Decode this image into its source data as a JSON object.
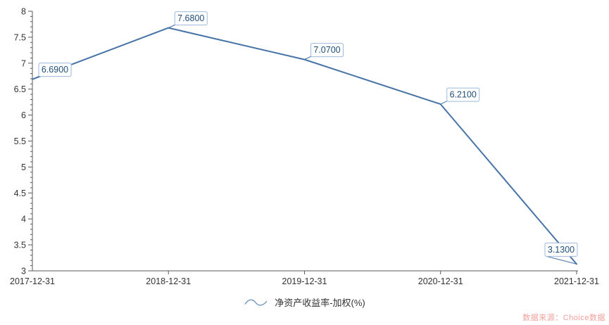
{
  "chart_data": {
    "type": "line",
    "title": "",
    "x": [
      "2017-12-31",
      "2018-12-31",
      "2019-12-31",
      "2020-12-31",
      "2021-12-31"
    ],
    "series": [
      {
        "name": "净资产收益率-加权(%)",
        "values": [
          6.69,
          7.68,
          7.07,
          6.21,
          3.13
        ],
        "point_labels": [
          "6.6900",
          "7.6800",
          "7.0700",
          "6.2100",
          "3.1300"
        ],
        "color": "#4572a7"
      }
    ],
    "xlabel": "",
    "ylabel": "",
    "ylim": [
      3,
      8
    ],
    "y_major_step": 0.5,
    "y_minor_step": 0.1,
    "grid": false,
    "legend_position": "bottom"
  },
  "legend": {
    "label": "净资产收益率-加权(%)"
  },
  "watermark": {
    "text": "数据来源：Choice数据",
    "color": "#f2a09a"
  },
  "colors": {
    "line": "#4572a7",
    "label_text": "#1f4e79",
    "label_border": "#9dbbdd",
    "label_fill": "#ffffff",
    "axis": "#5a5a5a",
    "tick_text": "#333333",
    "legend_icon": "#6d96c2"
  }
}
